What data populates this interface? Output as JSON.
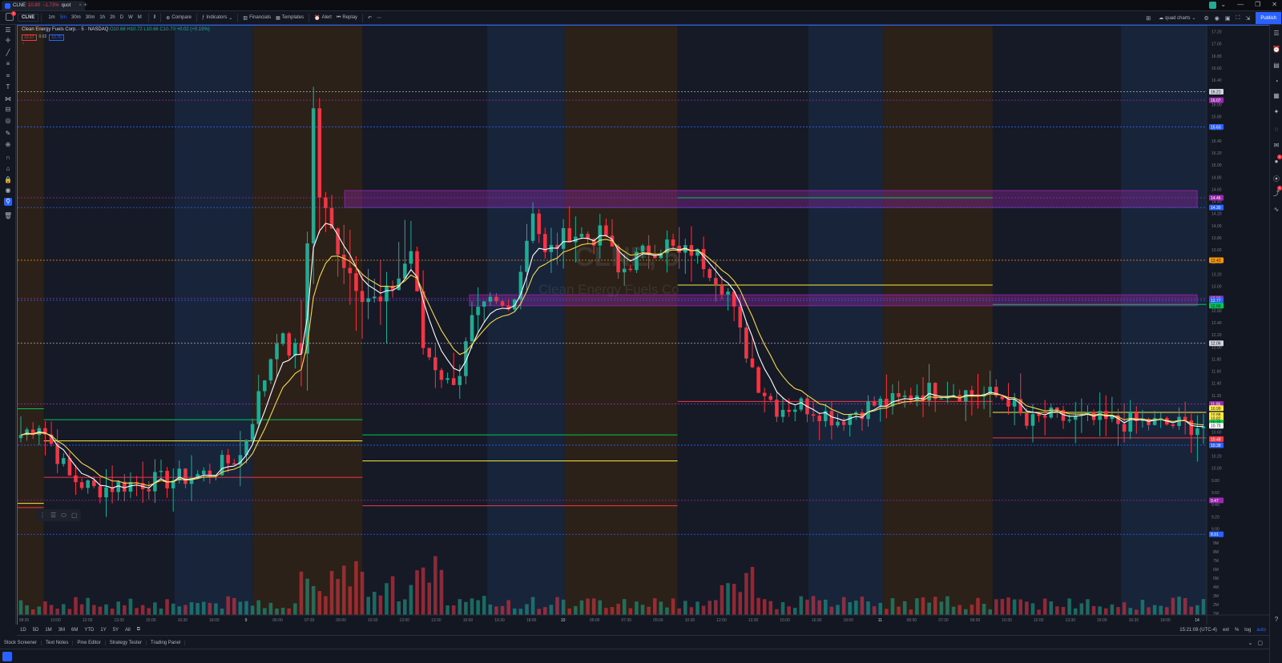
{
  "browser": {
    "tab_symbol": "CLNE",
    "tab_price": "10.80",
    "tab_change": "−1.73%",
    "tab_suffix": "quot",
    "close_glyph": "×",
    "new_tab": "+",
    "window_buttons": [
      "⌄",
      "—",
      "❐",
      "✕"
    ]
  },
  "toolbar": {
    "symbol": "CLNE",
    "intervals": [
      "1m",
      "5m",
      "30m",
      "30m",
      "1h",
      "2h",
      "D",
      "W",
      "M"
    ],
    "active_interval": 1,
    "compare_label": "Compare",
    "indicators_label": "Indicators",
    "financials_label": "Financials",
    "templates_label": "Templates",
    "alert_label": "Alert",
    "replay_label": "Replay",
    "layout_name": "quad charts",
    "publish_label": "Publish",
    "notification_count": "1"
  },
  "legend": {
    "title": "Clean Energy Fuels Corp. · 5 · NASDAQ",
    "ohlc": "O10.68 H10.72 L10.66 C10.70 +0.02 (+0.19%)",
    "sell": "10.67",
    "spread": "0.02",
    "buy": "10.70",
    "collapse": "⌃"
  },
  "watermark": {
    "symbol": "CLNE, 5",
    "name": "Clean Energy Fuels Co"
  },
  "chart_data": {
    "type": "candlestick",
    "symbol": "CLNE",
    "timeframe": "5",
    "exchange": "NASDAQ",
    "ylim": [
      8.9,
      17.3
    ],
    "y_ticks": [
      9.0,
      9.2,
      9.4,
      9.6,
      9.8,
      10.0,
      10.2,
      10.4,
      10.6,
      10.8,
      11.0,
      11.2,
      11.4,
      11.6,
      11.8,
      12.0,
      12.2,
      12.4,
      12.6,
      12.8,
      13.0,
      13.2,
      13.4,
      13.6,
      13.8,
      14.0,
      14.2,
      14.4,
      14.6,
      14.8,
      15.0,
      15.2,
      15.4,
      15.6,
      15.8,
      16.0,
      16.2,
      16.4,
      16.6,
      16.8,
      17.0,
      17.2
    ],
    "x_labels": [
      "08:30",
      "10:00",
      "12:00",
      "13:30",
      "15:00",
      "16:30",
      "18:00",
      "9",
      "06:00",
      "07:30",
      "09:00",
      "10:30",
      "12:00",
      "13:30",
      "15:00",
      "16:30",
      "18:00",
      "10",
      "06:00",
      "07:30",
      "09:00",
      "10:30",
      "12:00",
      "13:30",
      "15:00",
      "16:30",
      "18:00",
      "11",
      "06:00",
      "07:30",
      "09:00",
      "10:30",
      "12:00",
      "13:30",
      "15:00",
      "16:30",
      "18:00",
      "14"
    ],
    "price_path": [
      [
        0,
        10.55
      ],
      [
        3,
        10.75
      ],
      [
        5,
        10.4
      ],
      [
        8,
        9.85
      ],
      [
        12,
        9.65
      ],
      [
        18,
        9.75
      ],
      [
        24,
        9.8
      ],
      [
        30,
        9.9
      ],
      [
        36,
        10.2
      ],
      [
        40,
        11.5
      ],
      [
        42,
        12.2
      ],
      [
        44,
        11.95
      ],
      [
        46,
        11.9
      ],
      [
        47,
        13.8
      ],
      [
        48,
        15.9
      ],
      [
        49,
        14.5
      ],
      [
        51,
        13.9
      ],
      [
        53,
        13.4
      ],
      [
        56,
        12.9
      ],
      [
        59,
        12.7
      ],
      [
        62,
        13.15
      ],
      [
        64,
        13.6
      ],
      [
        66,
        12.0
      ],
      [
        70,
        11.4
      ],
      [
        72,
        11.6
      ],
      [
        74,
        12.4
      ],
      [
        77,
        12.7
      ],
      [
        80,
        12.6
      ],
      [
        82,
        13.3
      ],
      [
        84,
        14.3
      ],
      [
        86,
        13.5
      ],
      [
        90,
        13.9
      ],
      [
        93,
        13.8
      ],
      [
        96,
        13.85
      ],
      [
        98,
        13.2
      ],
      [
        100,
        13.4
      ],
      [
        103,
        13.6
      ],
      [
        106,
        13.7
      ],
      [
        108,
        13.5
      ],
      [
        110,
        13.6
      ],
      [
        113,
        13.3
      ],
      [
        116,
        12.9
      ],
      [
        118,
        12.2
      ],
      [
        121,
        11.4
      ],
      [
        124,
        11.0
      ],
      [
        128,
        11.05
      ],
      [
        131,
        10.95
      ],
      [
        134,
        10.8
      ],
      [
        137,
        10.95
      ],
      [
        140,
        11.05
      ],
      [
        144,
        11.1
      ],
      [
        147,
        11.25
      ],
      [
        151,
        11.3
      ],
      [
        155,
        11.25
      ],
      [
        159,
        11.2
      ],
      [
        162,
        11.15
      ],
      [
        165,
        10.7
      ],
      [
        168,
        10.85
      ],
      [
        172,
        10.8
      ],
      [
        176,
        10.78
      ],
      [
        180,
        10.75
      ],
      [
        184,
        10.76
      ],
      [
        188,
        10.72
      ],
      [
        194,
        10.7
      ]
    ],
    "volume_axis": [
      "9M",
      "8M",
      "7M",
      "6M",
      "5M",
      "4M",
      "3M",
      "2M",
      "1M"
    ],
    "price_labels": [
      {
        "value": "16.21",
        "color": "#d1d4dc"
      },
      {
        "value": "16.07",
        "color": "#9c27b0"
      },
      {
        "value": "15.63",
        "color": "#2962ff"
      },
      {
        "value": "14.46",
        "color": "#9c27b0"
      },
      {
        "value": "14.30",
        "color": "#2962ff"
      },
      {
        "value": "13.43",
        "color": "#ff9800"
      },
      {
        "value": "12.80",
        "color": "#9c27b0"
      },
      {
        "value": "12.77",
        "color": "#2962ff"
      },
      {
        "value": "12.68",
        "color": "#00c853"
      },
      {
        "value": "12.06",
        "color": "#d1d4dc"
      },
      {
        "value": "11.06",
        "color": "#9c27b0"
      },
      {
        "value": "10.99",
        "color": "#ffeb3b"
      },
      {
        "value": "10.88",
        "color": "#ffeb3b"
      },
      {
        "value": "10.82",
        "color": "#ffeb3b"
      },
      {
        "value": "10.75",
        "color": "#00c853"
      },
      {
        "value": "10.70",
        "color": "#ffffff"
      },
      {
        "value": "10.48",
        "color": "#f23645"
      },
      {
        "value": "10.38",
        "color": "#2962ff"
      },
      {
        "value": "9.47",
        "color": "#9c27b0"
      },
      {
        "value": "8.91",
        "color": "#2962ff"
      }
    ],
    "levels_dotted": [
      {
        "value": 16.21,
        "color": "#b2b5be"
      },
      {
        "value": 16.07,
        "color": "#9c27b0"
      },
      {
        "value": 15.63,
        "color": "#2962ff"
      },
      {
        "value": 14.46,
        "color": "#9c27b0"
      },
      {
        "value": 14.3,
        "color": "#2962ff"
      },
      {
        "value": 13.43,
        "color": "#ff9800"
      },
      {
        "value": 12.8,
        "color": "#9c27b0"
      },
      {
        "value": 12.77,
        "color": "#2962ff"
      },
      {
        "value": 12.06,
        "color": "#b2b5be"
      },
      {
        "value": 11.06,
        "color": "#9c27b0"
      },
      {
        "value": 10.38,
        "color": "#2962ff"
      },
      {
        "value": 9.47,
        "color": "#9c27b0"
      },
      {
        "value": 8.91,
        "color": "#2962ff"
      }
    ],
    "zones": [
      {
        "from": 14.3,
        "to": 14.58,
        "color": "#9c27b0"
      },
      {
        "from": 12.68,
        "to": 12.86,
        "color": "#9c27b0"
      }
    ],
    "colors": {
      "up": "#22ab94",
      "down": "#f23645",
      "ema_fast": "#ffffff",
      "ema_slow": "#f7d74a"
    }
  },
  "range_bar": {
    "ranges": [
      "1D",
      "5D",
      "1M",
      "3M",
      "6M",
      "YTD",
      "1Y",
      "5Y",
      "All"
    ],
    "clock": "15:21:08 (UTC-4)",
    "ext": "ext",
    "percent": "%",
    "log": "log",
    "auto": "auto"
  },
  "bottom_tabs": [
    "Stock Screener",
    "Text Notes",
    "Pine Editor",
    "Strategy Tester",
    "Trading Panel"
  ],
  "icons": {
    "left": [
      "menu-icon",
      "cursor-icon",
      "trend-line-icon",
      "fib-icon",
      "pattern-icon",
      "text-icon",
      "prediction-icon",
      "measure-icon",
      "eye-icon",
      "brush-icon",
      "zoom-icon",
      "magnet-icon",
      "lock-drawing-icon",
      "lock-icon",
      "visibility-icon",
      "alert-drawing-icon",
      "trash-icon"
    ],
    "right": [
      "watchlist-icon",
      "alerts-icon",
      "data-window-icon",
      "hotlist-icon",
      "calendar-icon",
      "ideas-icon",
      "streams-icon",
      "chat-icon",
      "notifications-icon",
      "broadcast-icon",
      "chart-icon",
      "trend-icon",
      "help-icon"
    ]
  }
}
